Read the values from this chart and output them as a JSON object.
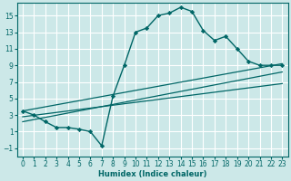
{
  "xlabel": "Humidex (Indice chaleur)",
  "ylabel": "",
  "bg_color": "#cce8e8",
  "grid_color": "#ffffff",
  "line_color": "#006666",
  "xlim": [
    -0.5,
    23.5
  ],
  "ylim": [
    -2.0,
    16.5
  ],
  "xticks": [
    0,
    1,
    2,
    3,
    4,
    5,
    6,
    7,
    8,
    9,
    10,
    11,
    12,
    13,
    14,
    15,
    16,
    17,
    18,
    19,
    20,
    21,
    22,
    23
  ],
  "yticks": [
    -1,
    1,
    3,
    5,
    7,
    9,
    11,
    13,
    15
  ],
  "curve1_x": [
    0,
    1,
    2,
    3,
    4,
    5,
    6,
    7,
    8,
    9,
    10,
    11,
    12,
    13,
    14,
    15,
    16,
    17,
    18,
    19,
    20,
    21,
    22,
    23
  ],
  "curve1_y": [
    3.5,
    3.0,
    2.2,
    1.5,
    1.5,
    1.3,
    1.0,
    -0.7,
    5.3,
    9.0,
    13.0,
    13.5,
    15.0,
    15.3,
    16.0,
    15.5,
    13.2,
    12.0,
    12.5,
    11.0,
    9.5,
    9.0,
    9.0,
    9.0
  ],
  "line1_x": [
    0,
    23
  ],
  "line1_y": [
    3.5,
    9.2
  ],
  "line2_x": [
    0,
    23
  ],
  "line2_y": [
    2.8,
    6.8
  ],
  "line3_x": [
    0,
    23
  ],
  "line3_y": [
    2.2,
    8.2
  ]
}
